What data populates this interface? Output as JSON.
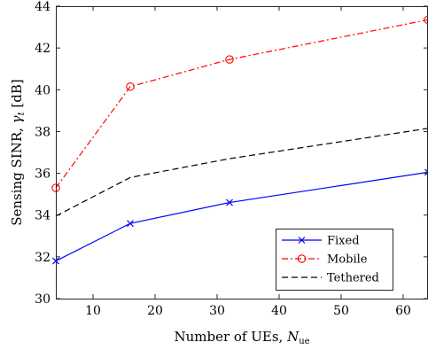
{
  "chart_data": {
    "type": "line",
    "xlabel": "Number of UEs, ",
    "xlabel_symbol": "N",
    "xlabel_sub": "ue",
    "ylabel": "Sensing SINR, ",
    "ylabel_symbol": "γ",
    "ylabel_sub": "t",
    "ylabel_unit": " [dB]",
    "xlim": [
      4,
      64
    ],
    "ylim": [
      30,
      44
    ],
    "x_ticks": [
      10,
      20,
      30,
      40,
      50,
      60
    ],
    "y_ticks": [
      30,
      32,
      34,
      36,
      38,
      40,
      42,
      44
    ],
    "grid": false,
    "box": true,
    "legend_position": "bottom-right",
    "series": [
      {
        "name": "Fixed",
        "color": "#0000ff",
        "line_style": "solid",
        "marker": "x",
        "x": [
          4,
          16,
          32,
          64
        ],
        "y": [
          31.8,
          33.6,
          34.6,
          36.05
        ]
      },
      {
        "name": "Mobile",
        "color": "#ff0000",
        "line_style": "dashdot",
        "marker": "circle",
        "x": [
          4,
          16,
          32,
          64
        ],
        "y": [
          35.3,
          40.15,
          41.45,
          43.35
        ]
      },
      {
        "name": "Tethered",
        "color": "#000000",
        "line_style": "dashed",
        "marker": "none",
        "x": [
          4,
          16,
          32,
          64
        ],
        "y": [
          33.95,
          35.8,
          36.7,
          38.15
        ]
      }
    ]
  }
}
